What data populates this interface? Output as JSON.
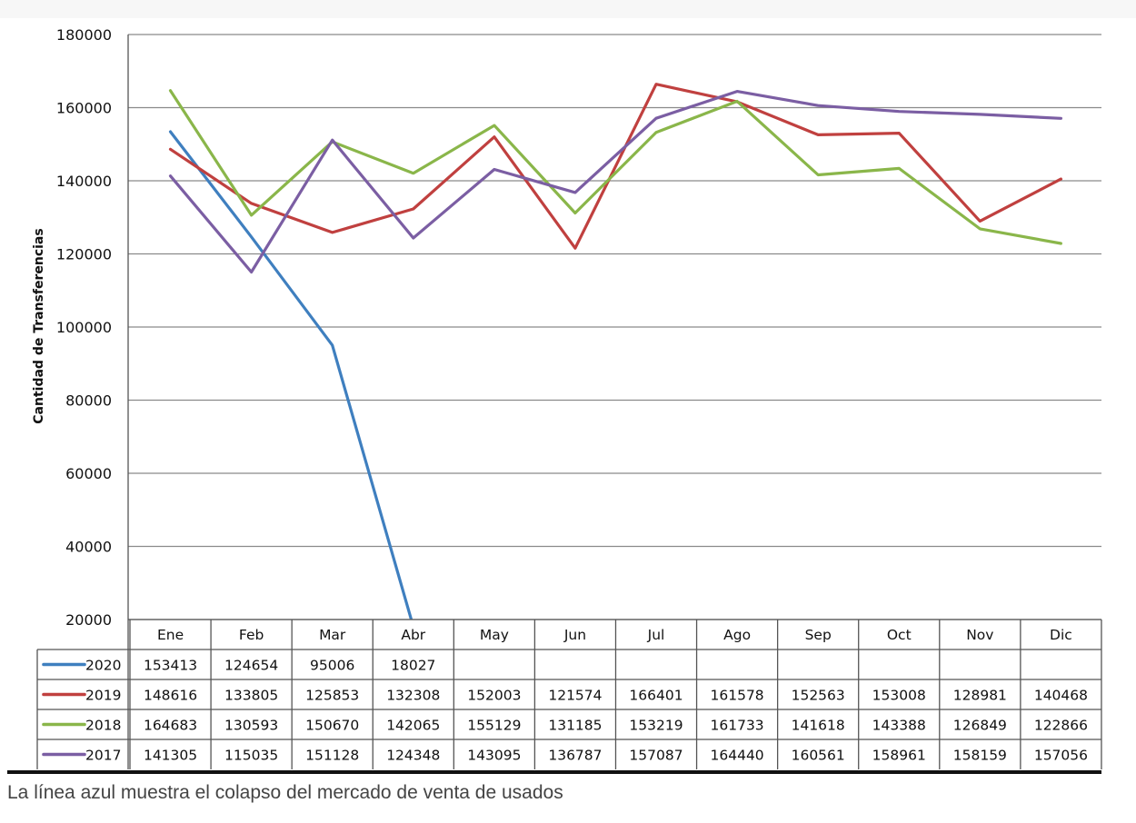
{
  "chart_data": {
    "type": "line",
    "ylabel": "Cantidad de Transferencias",
    "ylim": [
      20000,
      180000
    ],
    "yticks": [
      180000,
      160000,
      140000,
      120000,
      100000,
      80000,
      60000,
      40000,
      20000
    ],
    "grid": true,
    "categories": [
      "Ene",
      "Feb",
      "Mar",
      "Abr",
      "May",
      "Jun",
      "Jul",
      "Ago",
      "Sep",
      "Oct",
      "Nov",
      "Dic"
    ],
    "series": [
      {
        "name": "2020",
        "color": "#3f7fbf",
        "values": [
          153413,
          124654,
          95006,
          18027,
          null,
          null,
          null,
          null,
          null,
          null,
          null,
          null
        ]
      },
      {
        "name": "2019",
        "color": "#c0403f",
        "values": [
          148616,
          133805,
          125853,
          132308,
          152003,
          121574,
          166401,
          161578,
          152563,
          153008,
          128981,
          140468
        ]
      },
      {
        "name": "2018",
        "color": "#8ab64a",
        "values": [
          164683,
          130593,
          150670,
          142065,
          155129,
          131185,
          153219,
          161733,
          141618,
          143388,
          126849,
          122866
        ]
      },
      {
        "name": "2017",
        "color": "#7b5ea3",
        "values": [
          141305,
          115035,
          151128,
          124348,
          143095,
          136787,
          157087,
          164440,
          160561,
          158961,
          158159,
          157056
        ]
      }
    ]
  },
  "caption": "La línea azul muestra el colapso del mercado de venta de usados"
}
